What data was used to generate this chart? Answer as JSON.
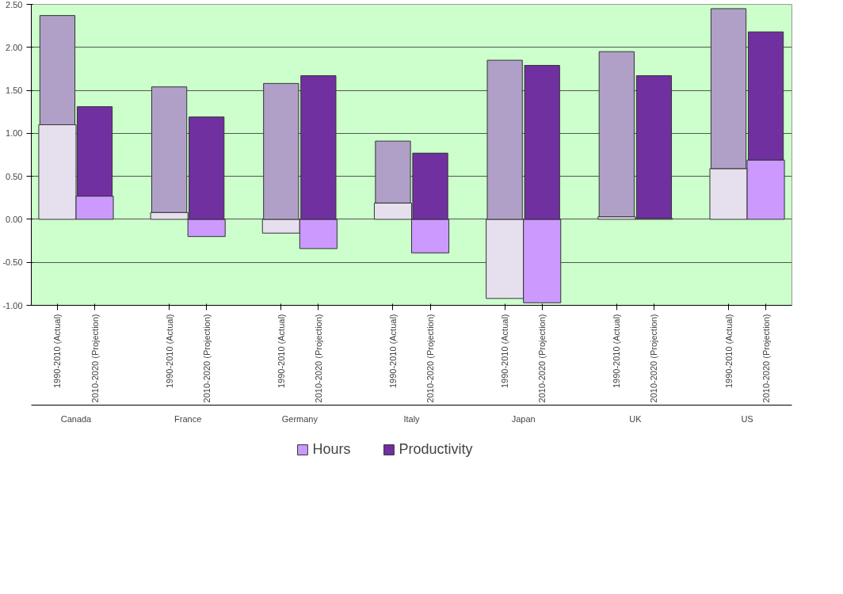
{
  "chart_data": {
    "type": "bar",
    "stacked": true,
    "categories": [
      "1990-2010 (Actual)",
      "2010-2020 (Projection)",
      "1990-2010 (Actual)",
      "2010-2020 (Projection)",
      "1990-2010 (Actual)",
      "2010-2020 (Projection)",
      "1990-2010 (Actual)",
      "2010-2020 (Projection)",
      "1990-2010 (Actual)",
      "2010-2020 (Projection)",
      "1990-2010 (Actual)",
      "2010-2020 (Projection)",
      "1990-2010 (Actual)",
      "2010-2020 (Projection)"
    ],
    "series": [
      {
        "name": "Hours",
        "color": "#cc99ff",
        "values": [
          1.1,
          0.27,
          0.08,
          -0.2,
          -0.16,
          -0.34,
          0.19,
          -0.39,
          -0.92,
          -0.97,
          0.03,
          0.01,
          0.59,
          0.69
        ],
        "colors": [
          "#e6e0ee",
          "#cc99ff",
          "#e6e0ee",
          "#cc99ff",
          "#e6e0ee",
          "#cc99ff",
          "#e6e0ee",
          "#cc99ff",
          "#e6e0ee",
          "#cc99ff",
          "#e6e0ee",
          "#cc99ff",
          "#e6e0ee",
          "#cc99ff"
        ]
      },
      {
        "name": "Productivity",
        "color": "#7030a0",
        "values": [
          1.27,
          1.04,
          1.46,
          1.19,
          1.58,
          1.67,
          0.72,
          0.77,
          1.85,
          1.79,
          1.92,
          1.66,
          1.86,
          1.49
        ],
        "colors": [
          "#b0a0c8",
          "#7030a0",
          "#b0a0c8",
          "#7030a0",
          "#b0a0c8",
          "#7030a0",
          "#b0a0c8",
          "#7030a0",
          "#b0a0c8",
          "#7030a0",
          "#b0a0c8",
          "#7030a0",
          "#b0a0c8",
          "#7030a0"
        ]
      }
    ],
    "annotations": [
      "Canada",
      "France",
      "Germany",
      "Italy",
      "Japan",
      "UK",
      "US"
    ],
    "ylim": [
      -1.0,
      2.5
    ],
    "yticks": [
      {
        "value": -1.0,
        "label": "-1.00"
      },
      {
        "value": -0.5,
        "label": "-0.50"
      },
      {
        "value": 0,
        "label": "0.00"
      },
      {
        "value": 0.5,
        "label": "0.50"
      },
      {
        "value": 1.0,
        "label": "1.00"
      },
      {
        "value": 1.5,
        "label": "1.50"
      },
      {
        "value": 2.0,
        "label": "2.00"
      },
      {
        "value": 2.5,
        "label": "2.50"
      }
    ],
    "grid": "y",
    "legend": "bottom"
  }
}
